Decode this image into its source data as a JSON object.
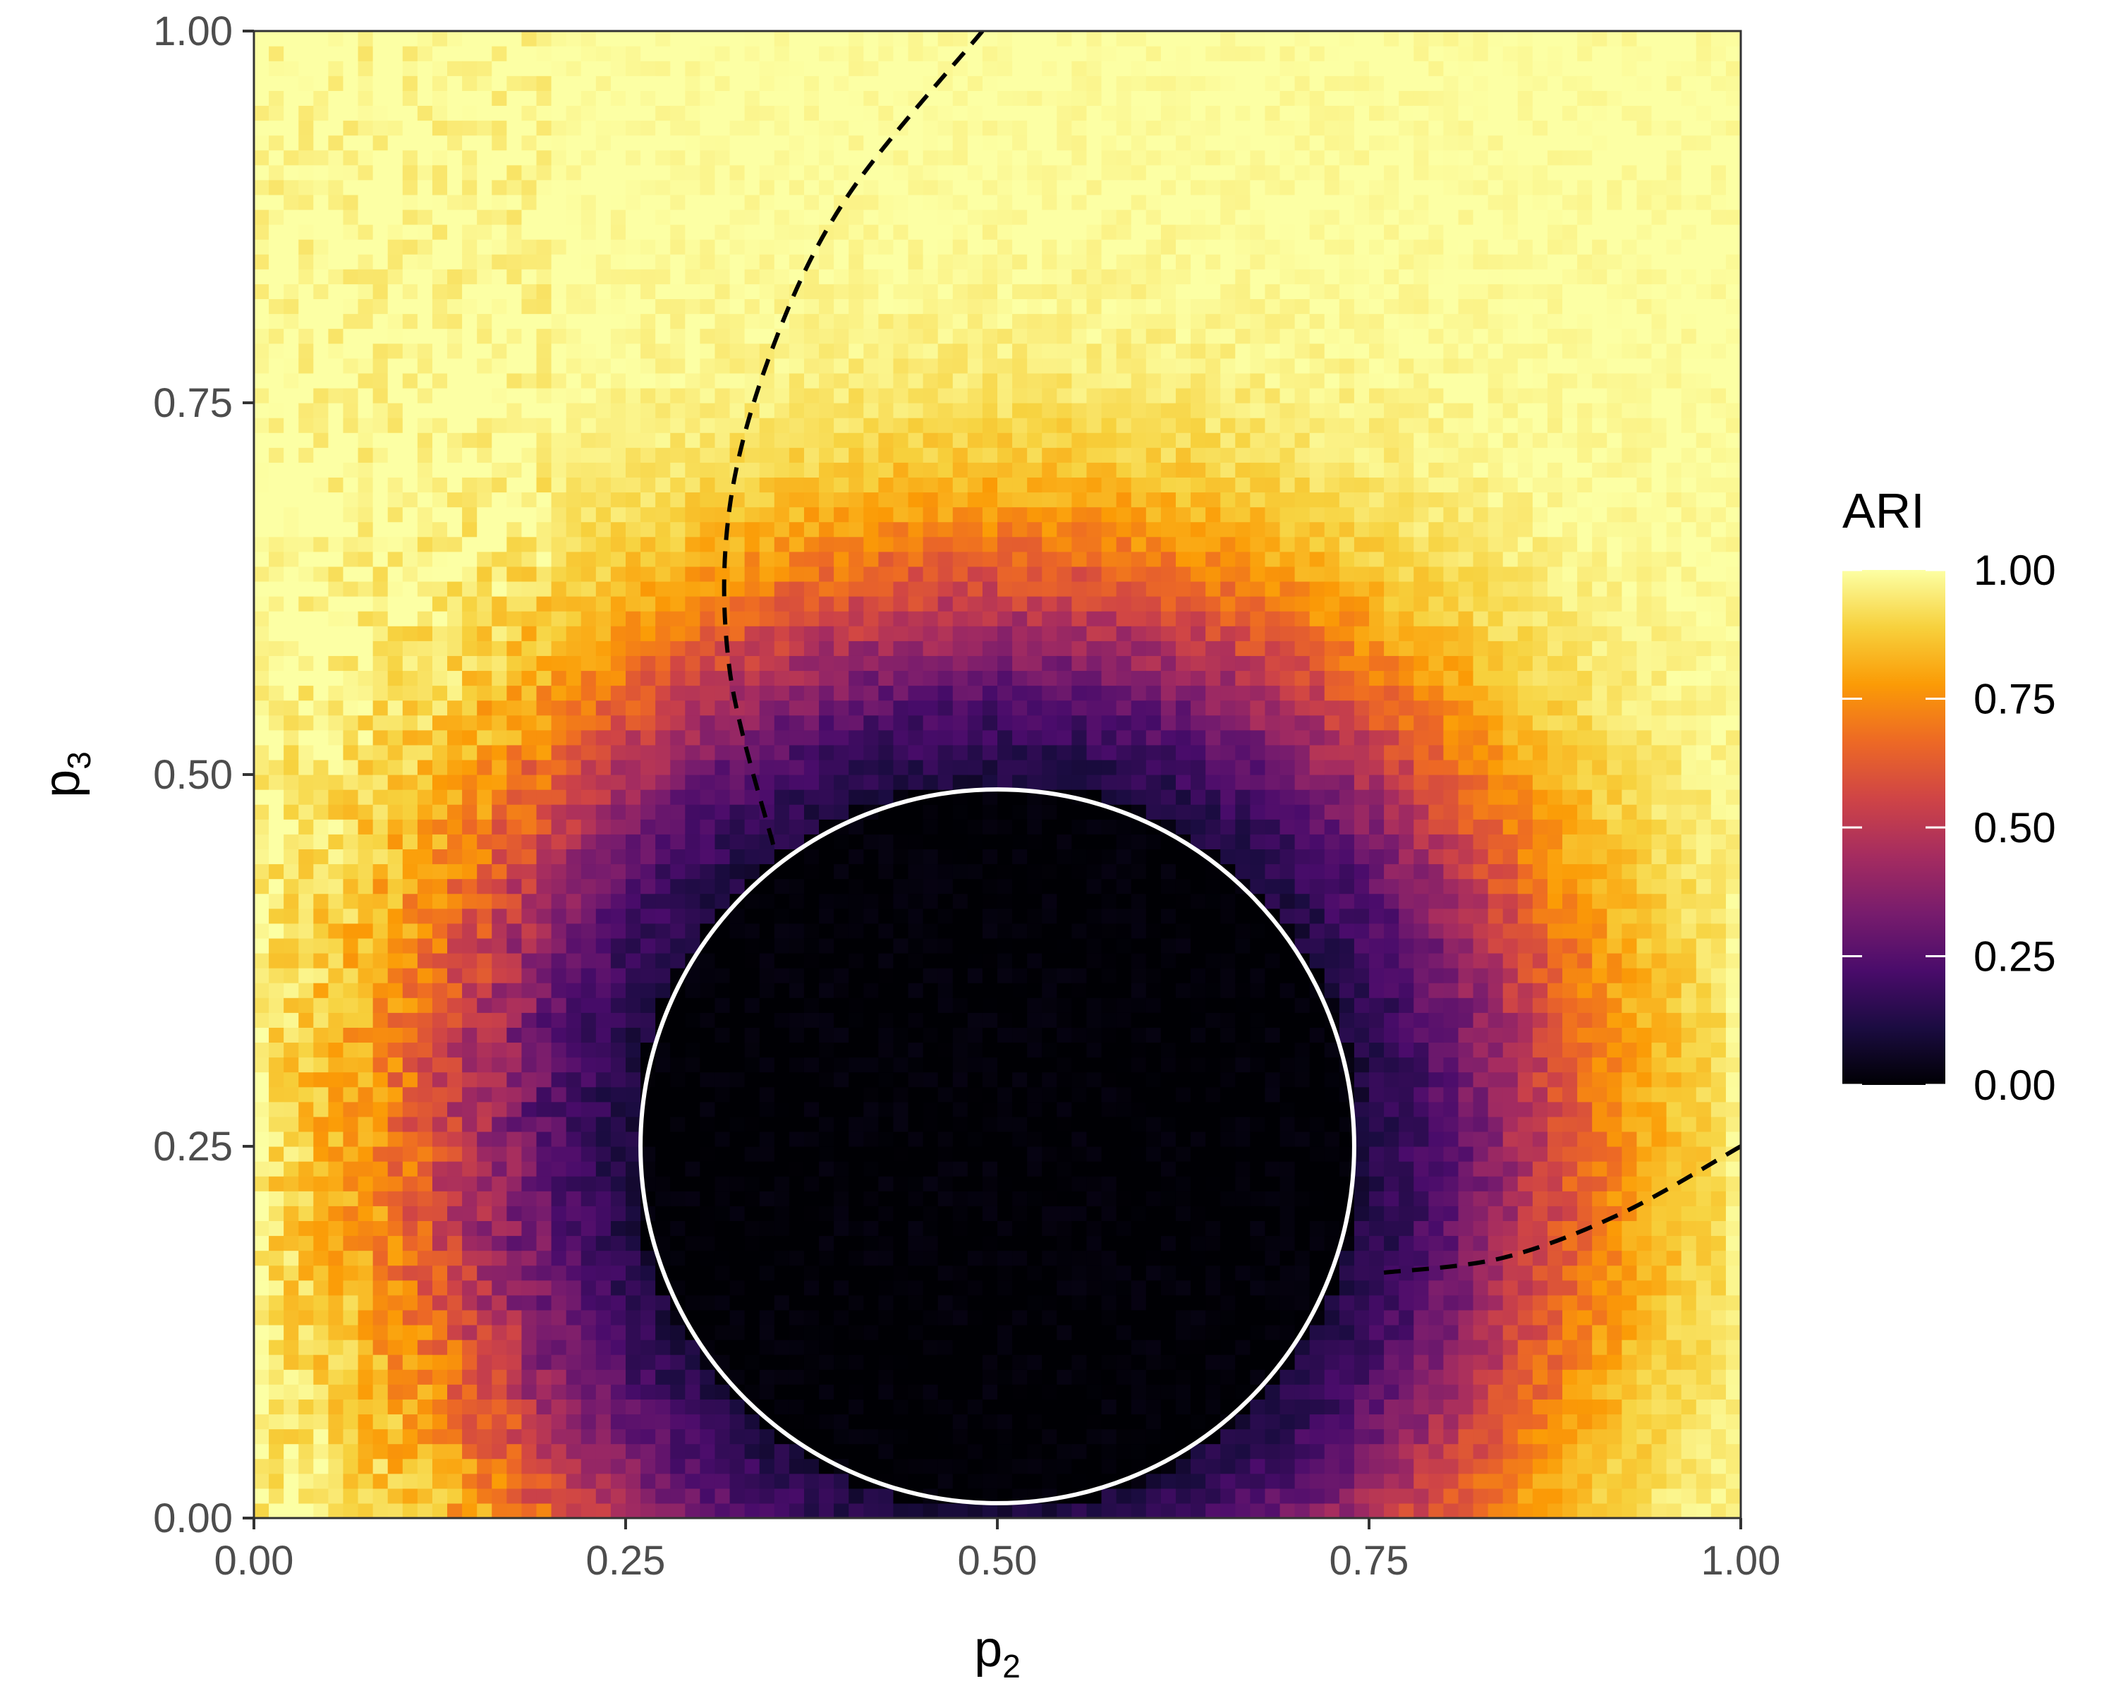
{
  "chart_data": {
    "type": "heatmap",
    "title": "",
    "xlabel": {
      "base": "p",
      "sub": "2"
    },
    "ylabel": {
      "base": "p",
      "sub": "3"
    },
    "xlim": [
      0,
      1
    ],
    "ylim": [
      0,
      1
    ],
    "x_ticks": [
      "0.00",
      "0.25",
      "0.50",
      "0.75",
      "1.00"
    ],
    "y_ticks": [
      "0.00",
      "0.25",
      "0.50",
      "0.75",
      "1.00"
    ],
    "grid": false,
    "grid_resolution": 100,
    "value_description": "ARI near 0 inside a disc centred at (0.50, 0.25) of radius about 0.24, rising through purple, red and orange to about 1 towards the corners",
    "colorscale": {
      "name": "inferno",
      "stops": [
        "#000004",
        "#1b0c41",
        "#4a0c6b",
        "#781c6d",
        "#a52c60",
        "#cf4446",
        "#ed6925",
        "#fb9b06",
        "#f7d13d",
        "#fcffa4"
      ]
    },
    "legend": {
      "title": "ARI",
      "position": "right",
      "ticks": [
        "0.00",
        "0.25",
        "0.50",
        "0.75",
        "1.00"
      ],
      "range": [
        0,
        1
      ]
    },
    "overlays": [
      {
        "type": "circle",
        "center": [
          0.5,
          0.25
        ],
        "radius": 0.24,
        "color": "#ffffff",
        "style": "solid"
      },
      {
        "type": "curve",
        "style": "dashed",
        "color": "#000000",
        "points": [
          [
            0.49,
            1.0
          ],
          [
            0.4,
            0.89
          ],
          [
            0.35,
            0.79
          ],
          [
            0.32,
            0.68
          ],
          [
            0.32,
            0.57
          ],
          [
            0.35,
            0.45
          ]
        ]
      },
      {
        "type": "curve",
        "style": "dashed",
        "color": "#000000",
        "points": [
          [
            0.76,
            0.165
          ],
          [
            0.84,
            0.175
          ],
          [
            0.92,
            0.205
          ],
          [
            1.0,
            0.25
          ]
        ]
      }
    ]
  }
}
